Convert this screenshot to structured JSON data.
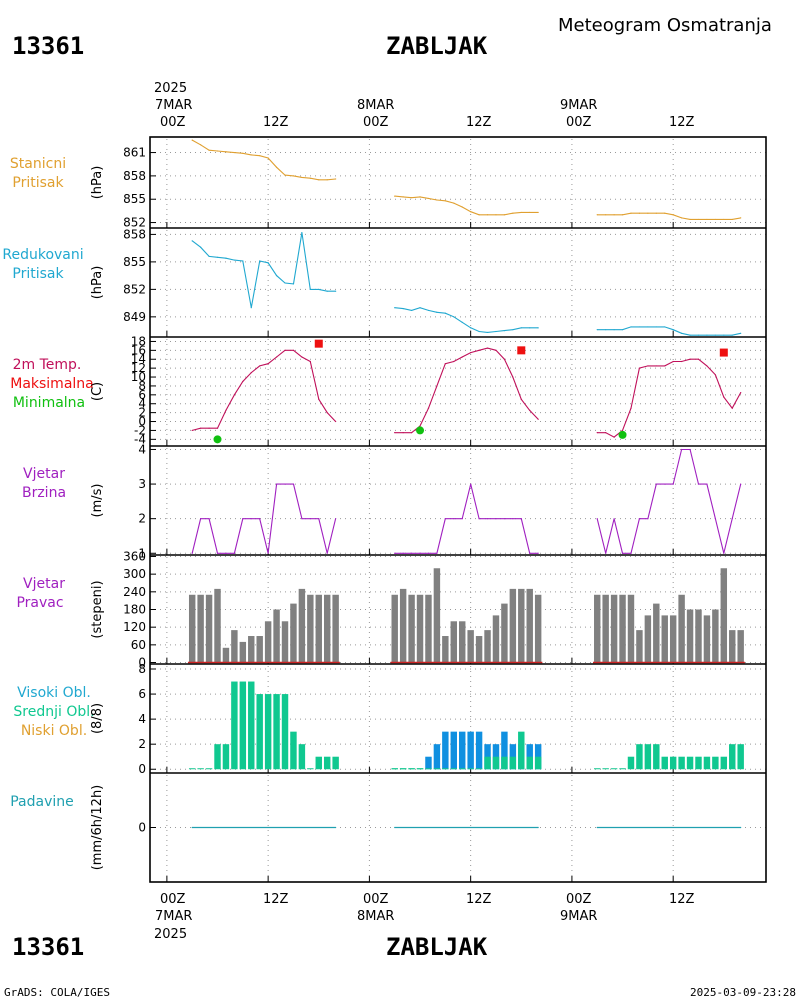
{
  "header": {
    "station_id": "13361",
    "station_name": "ZABLJAK",
    "title": "Meteogram Osmatranja"
  },
  "footer": {
    "left": "GrADS: COLA/IGES",
    "right": "2025-03-09-23:28"
  },
  "time_axis": {
    "top_year": "2025",
    "bottom_year": "2025",
    "days": [
      "7MAR",
      "8MAR",
      "9MAR"
    ],
    "hour_labels": [
      "00Z",
      "12Z"
    ],
    "x_range_hours": [
      -2,
      71
    ]
  },
  "colors": {
    "pressure": "#e0a030",
    "reduced": "#20a8d0",
    "temp": "#c0105a",
    "tmax": "#ee1010",
    "tmin": "#10c010",
    "wind": "#a020c0",
    "bars": "#808080",
    "bar_base": "#cc2222",
    "cloud_mid": "#10c890",
    "cloud_high": "#1090e0",
    "precip": "#20a0b0"
  },
  "chart_data": [
    {
      "type": "line",
      "panel": "station-pressure",
      "labels": [
        "Stanicni",
        "Pritisak"
      ],
      "unit": "(hPa)",
      "yticks": [
        861,
        858,
        855,
        852
      ],
      "ylim": [
        851.3,
        863
      ],
      "grid": true,
      "series": [
        {
          "segment": 1,
          "x": [
            3,
            4,
            5,
            6,
            7,
            8,
            9,
            10,
            11,
            12,
            13,
            14,
            15,
            16,
            17,
            18,
            19,
            20
          ],
          "y": [
            862.6,
            862.0,
            861.3,
            861.2,
            861.1,
            861.0,
            860.9,
            860.7,
            860.6,
            860.3,
            859.1,
            858.1,
            858.0,
            857.8,
            857.7,
            857.5,
            857.5,
            857.6
          ]
        },
        {
          "segment": 2,
          "x": [
            27,
            28,
            29,
            30,
            31,
            32,
            33,
            34,
            35,
            36,
            37,
            38,
            39,
            40,
            41,
            42,
            43,
            44
          ],
          "y": [
            855.4,
            855.3,
            855.2,
            855.3,
            855.1,
            854.9,
            854.8,
            854.5,
            854.0,
            853.4,
            853.0,
            853.0,
            853.0,
            853.0,
            853.2,
            853.3,
            853.3,
            853.3
          ]
        },
        {
          "segment": 3,
          "x": [
            51,
            52,
            53,
            54,
            55,
            56,
            57,
            58,
            59,
            60,
            61,
            62,
            63,
            64,
            65,
            66,
            67,
            68
          ],
          "y": [
            853.0,
            853.0,
            853.0,
            853.0,
            853.2,
            853.2,
            853.2,
            853.2,
            853.2,
            853.0,
            852.6,
            852.4,
            852.4,
            852.4,
            852.4,
            852.4,
            852.4,
            852.6
          ]
        }
      ]
    },
    {
      "type": "line",
      "panel": "reduced-pressure",
      "labels": [
        "Redukovani",
        "Pritisak"
      ],
      "unit": "(hPa)",
      "yticks": [
        858,
        855,
        852,
        849
      ],
      "ylim": [
        846.8,
        858.7
      ],
      "grid": true,
      "series": [
        {
          "segment": 1,
          "x": [
            3,
            4,
            5,
            6,
            7,
            8,
            9,
            10,
            11,
            12,
            13,
            14,
            15,
            16,
            17,
            18,
            19,
            20
          ],
          "y": [
            857.3,
            856.6,
            855.6,
            855.5,
            855.4,
            855.2,
            855.1,
            850.0,
            855.1,
            854.9,
            853.5,
            852.7,
            852.6,
            858.2,
            852.0,
            852.0,
            851.8,
            851.8
          ]
        },
        {
          "segment": 2,
          "x": [
            27,
            28,
            29,
            30,
            31,
            32,
            33,
            34,
            35,
            36,
            37,
            38,
            39,
            40,
            41,
            42,
            43,
            44
          ],
          "y": [
            850.0,
            849.9,
            849.7,
            850.0,
            849.7,
            849.5,
            849.4,
            849.0,
            848.4,
            847.8,
            847.4,
            847.3,
            847.4,
            847.5,
            847.6,
            847.8,
            847.8,
            847.8
          ]
        },
        {
          "segment": 3,
          "x": [
            51,
            52,
            53,
            54,
            55,
            56,
            57,
            58,
            59,
            60,
            61,
            62,
            63,
            64,
            65,
            66,
            67,
            68
          ],
          "y": [
            847.6,
            847.6,
            847.6,
            847.6,
            847.9,
            847.9,
            847.9,
            847.9,
            847.9,
            847.6,
            847.2,
            847.0,
            847.0,
            847.0,
            847.0,
            847.0,
            847.0,
            847.2
          ]
        }
      ]
    },
    {
      "type": "line",
      "panel": "temperature",
      "labels": [
        "2m Temp.",
        "Maksimalna",
        "Minimalna"
      ],
      "unit": "(C)",
      "yticks": [
        -4,
        -2,
        0,
        2,
        4,
        6,
        8,
        10,
        12,
        14,
        16,
        18
      ],
      "ylim": [
        -5.5,
        19
      ],
      "grid": true,
      "series": [
        {
          "segment": 1,
          "x": [
            3,
            4,
            5,
            6,
            7,
            8,
            9,
            10,
            11,
            12,
            13,
            14,
            15,
            16,
            17,
            18,
            19,
            20
          ],
          "y": [
            -2.0,
            -1.5,
            -1.5,
            -1.5,
            2.5,
            6.0,
            9.0,
            11.0,
            12.5,
            13.0,
            14.5,
            16.0,
            16.0,
            14.5,
            13.5,
            5.0,
            2.0,
            0.0
          ]
        },
        {
          "segment": 2,
          "x": [
            27,
            28,
            29,
            30,
            31,
            32,
            33,
            34,
            35,
            36,
            37,
            38,
            39,
            40,
            41,
            42,
            43,
            44
          ],
          "y": [
            -2.5,
            -2.5,
            -2.5,
            -1.0,
            3.0,
            8.0,
            13.0,
            13.5,
            14.5,
            15.5,
            16.0,
            16.5,
            16.0,
            14.0,
            10.0,
            5.0,
            2.5,
            0.5
          ]
        },
        {
          "segment": 3,
          "x": [
            51,
            52,
            53,
            54,
            55,
            56,
            57,
            58,
            59,
            60,
            61,
            62,
            63,
            64,
            65,
            66,
            67,
            68
          ],
          "y": [
            -2.5,
            -2.5,
            -3.5,
            -2.0,
            3.0,
            12.0,
            12.5,
            12.5,
            12.5,
            13.5,
            13.5,
            14.0,
            14.0,
            12.5,
            10.5,
            5.5,
            3.0,
            6.5
          ]
        }
      ],
      "maxima": [
        {
          "x": 18,
          "y": 17.5
        },
        {
          "x": 42,
          "y": 16.0
        },
        {
          "x": 66,
          "y": 15.5
        }
      ],
      "minima": [
        {
          "x": 6,
          "y": -4.0
        },
        {
          "x": 30,
          "y": -2.0
        },
        {
          "x": 54,
          "y": -3.0
        }
      ]
    },
    {
      "type": "line",
      "panel": "wind-speed",
      "labels": [
        "Vjetar",
        "Brzina"
      ],
      "unit": "(m/s)",
      "yticks": [
        1,
        2,
        3,
        4
      ],
      "ylim": [
        0.95,
        4.1
      ],
      "grid": true,
      "series": [
        {
          "segment": 1,
          "x": [
            3,
            4,
            5,
            6,
            7,
            8,
            9,
            10,
            11,
            12,
            13,
            14,
            15,
            16,
            17,
            18,
            19,
            20
          ],
          "y": [
            1,
            2,
            2,
            1,
            1,
            1,
            2,
            2,
            2,
            1,
            3,
            3,
            3,
            2,
            2,
            2,
            1,
            2
          ]
        },
        {
          "segment": 2,
          "x": [
            27,
            28,
            29,
            30,
            31,
            32,
            33,
            34,
            35,
            36,
            37,
            38,
            39,
            40,
            41,
            42,
            43,
            44
          ],
          "y": [
            1,
            1,
            1,
            1,
            1,
            1,
            2,
            2,
            2,
            3,
            2,
            2,
            2,
            2,
            2,
            2,
            1,
            1
          ]
        },
        {
          "segment": 3,
          "x": [
            51,
            52,
            53,
            54,
            55,
            56,
            57,
            58,
            59,
            60,
            61,
            62,
            63,
            64,
            65,
            66,
            67,
            68
          ],
          "y": [
            2,
            1,
            2,
            1,
            1,
            2,
            2,
            3,
            3,
            3,
            4,
            4,
            3,
            3,
            2,
            1,
            2,
            3
          ]
        }
      ]
    },
    {
      "type": "bar",
      "panel": "wind-direction",
      "labels": [
        "Vjetar",
        "Pravac"
      ],
      "unit": "(stepeni)",
      "yticks": [
        0,
        60,
        120,
        180,
        240,
        300,
        360
      ],
      "ylim": [
        -5,
        365
      ],
      "grid": true,
      "series": [
        {
          "segment": 1,
          "x": [
            3,
            4,
            5,
            6,
            7,
            8,
            9,
            10,
            11,
            12,
            13,
            14,
            15,
            16,
            17,
            18,
            19,
            20
          ],
          "values": [
            230,
            230,
            230,
            250,
            50,
            110,
            70,
            90,
            90,
            140,
            180,
            140,
            200,
            250,
            230,
            230,
            230,
            230
          ]
        },
        {
          "segment": 2,
          "x": [
            27,
            28,
            29,
            30,
            31,
            32,
            33,
            34,
            35,
            36,
            37,
            38,
            39,
            40,
            41,
            42,
            43,
            44
          ],
          "values": [
            230,
            250,
            230,
            230,
            230,
            320,
            90,
            140,
            140,
            110,
            90,
            110,
            160,
            200,
            250,
            250,
            250,
            230
          ]
        },
        {
          "segment": 3,
          "x": [
            51,
            52,
            53,
            54,
            55,
            56,
            57,
            58,
            59,
            60,
            61,
            62,
            63,
            64,
            65,
            66,
            67,
            68
          ],
          "values": [
            230,
            230,
            230,
            230,
            230,
            110,
            160,
            200,
            160,
            160,
            230,
            180,
            180,
            160,
            180,
            320,
            110,
            110
          ]
        }
      ]
    },
    {
      "type": "bar",
      "panel": "clouds",
      "labels": [
        "Visoki Obl.",
        "Srednji Obl.",
        "Niski Obl."
      ],
      "unit": "(8/8)",
      "yticks": [
        0,
        2,
        4,
        6,
        8
      ],
      "ylim": [
        -0.3,
        8.4
      ],
      "grid": true,
      "series": [
        {
          "name": "Srednji Obl.",
          "segment": 1,
          "x": [
            3,
            4,
            5,
            6,
            7,
            8,
            9,
            10,
            11,
            12,
            13,
            14,
            15,
            16,
            17,
            18,
            19,
            20
          ],
          "values": [
            0,
            0,
            0,
            2,
            2,
            7,
            7,
            7,
            6,
            6,
            6,
            6,
            3,
            2,
            0,
            1,
            1,
            1
          ]
        },
        {
          "name": "Visoki Obl.",
          "segment": 2,
          "x": [
            27,
            28,
            29,
            30,
            31,
            32,
            33,
            34,
            35,
            36,
            37,
            38,
            39,
            40,
            41,
            42,
            43,
            44
          ],
          "values": [
            0,
            0,
            0,
            0,
            1,
            2,
            3,
            3,
            3,
            3,
            3,
            2,
            2,
            3,
            2,
            2,
            2,
            2
          ]
        },
        {
          "name": "Srednji Obl.",
          "segment": 2,
          "x": [
            27,
            28,
            29,
            30,
            31,
            32,
            33,
            34,
            35,
            36,
            37,
            38,
            39,
            40,
            41,
            42,
            43,
            44
          ],
          "values": [
            0,
            0,
            0,
            0,
            0,
            0,
            0,
            0,
            0,
            0,
            0,
            1,
            1,
            1,
            1,
            3,
            1,
            1
          ]
        },
        {
          "name": "Srednji Obl.",
          "segment": 3,
          "x": [
            51,
            52,
            53,
            54,
            55,
            56,
            57,
            58,
            59,
            60,
            61,
            62,
            63,
            64,
            65,
            66,
            67,
            68
          ],
          "values": [
            0,
            0,
            0,
            0,
            1,
            2,
            2,
            2,
            1,
            1,
            1,
            1,
            1,
            1,
            1,
            1,
            2,
            2
          ]
        }
      ]
    },
    {
      "type": "line",
      "panel": "precipitation",
      "labels": [
        "Padavine"
      ],
      "unit": "(mm/6h/12h)",
      "yticks": [
        0
      ],
      "ylim": [
        -1,
        1
      ],
      "grid": true,
      "series": [
        {
          "segment": 1,
          "x": [
            3,
            20
          ],
          "y": [
            0,
            0
          ]
        },
        {
          "segment": 2,
          "x": [
            27,
            44
          ],
          "y": [
            0,
            0
          ]
        },
        {
          "segment": 3,
          "x": [
            51,
            68
          ],
          "y": [
            0,
            0
          ]
        }
      ]
    }
  ]
}
